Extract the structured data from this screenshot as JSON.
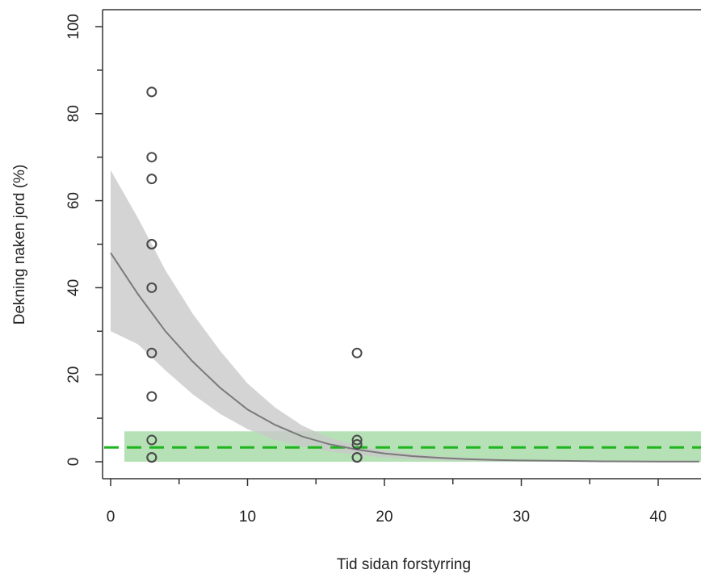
{
  "chart_data": {
    "type": "scatter",
    "title": "",
    "xlabel": "Tid sidan forstyrring",
    "ylabel": "Dekning naken jord (%)",
    "xlim": [
      0,
      43
    ],
    "ylim": [
      0,
      100
    ],
    "x_ticks": [
      0,
      10,
      20,
      30,
      40
    ],
    "x_minor_ticks": [
      5,
      15,
      25,
      35
    ],
    "y_ticks": [
      0,
      20,
      40,
      60,
      80,
      100
    ],
    "y_minor_ticks": [
      10,
      30,
      50,
      70,
      90
    ],
    "grid": false,
    "points": [
      {
        "x": 3,
        "y": 85
      },
      {
        "x": 3,
        "y": 70
      },
      {
        "x": 3,
        "y": 65
      },
      {
        "x": 3,
        "y": 50
      },
      {
        "x": 3,
        "y": 50
      },
      {
        "x": 3,
        "y": 40
      },
      {
        "x": 3,
        "y": 25
      },
      {
        "x": 3,
        "y": 15
      },
      {
        "x": 3,
        "y": 5
      },
      {
        "x": 3,
        "y": 1
      },
      {
        "x": 3,
        "y": 1
      },
      {
        "x": 18,
        "y": 25
      },
      {
        "x": 18,
        "y": 5
      },
      {
        "x": 18,
        "y": 4
      },
      {
        "x": 18,
        "y": 1
      },
      {
        "x": 18,
        "y": 1
      }
    ],
    "fit_curve": {
      "x": [
        0,
        2,
        4,
        6,
        8,
        10,
        12,
        14,
        16,
        18,
        20,
        22,
        24,
        26,
        28,
        30,
        33,
        36,
        40,
        43
      ],
      "y": [
        48,
        38.5,
        30,
        23,
        17,
        12,
        8.5,
        5.8,
        4,
        2.8,
        1.9,
        1.3,
        0.9,
        0.6,
        0.4,
        0.3,
        0.2,
        0.1,
        0.05,
        0.03
      ]
    },
    "fit_band": {
      "x": [
        0,
        2,
        4,
        6,
        8,
        10,
        12,
        14,
        16,
        18,
        20,
        22,
        24,
        26,
        28,
        30,
        33,
        36,
        40,
        43
      ],
      "upper": [
        67,
        56,
        44,
        34,
        25.5,
        18,
        12.5,
        8.3,
        5.5,
        3.8,
        2.6,
        1.8,
        1.2,
        0.9,
        0.7,
        0.5,
        0.35,
        0.25,
        0.15,
        0.1
      ],
      "lower": [
        30,
        27,
        21,
        15.5,
        11,
        7.5,
        5,
        3.5,
        2.4,
        1.6,
        1.0,
        0.6,
        0.4,
        0.25,
        0.15,
        0.1,
        0.05,
        0.03,
        0.01,
        0.0
      ]
    },
    "reference_line": {
      "y": 3.3,
      "style": "dashed"
    },
    "reference_band": {
      "x_start": 1,
      "y_lower": 0,
      "y_upper": 7
    },
    "colors": {
      "points": "#4a4a4a",
      "fit_line": "#7a7a7a",
      "fit_band": "#c9c9c9",
      "reference_line": "#1fb51f",
      "reference_band": "#a9dca9",
      "axis": "#333333"
    }
  }
}
